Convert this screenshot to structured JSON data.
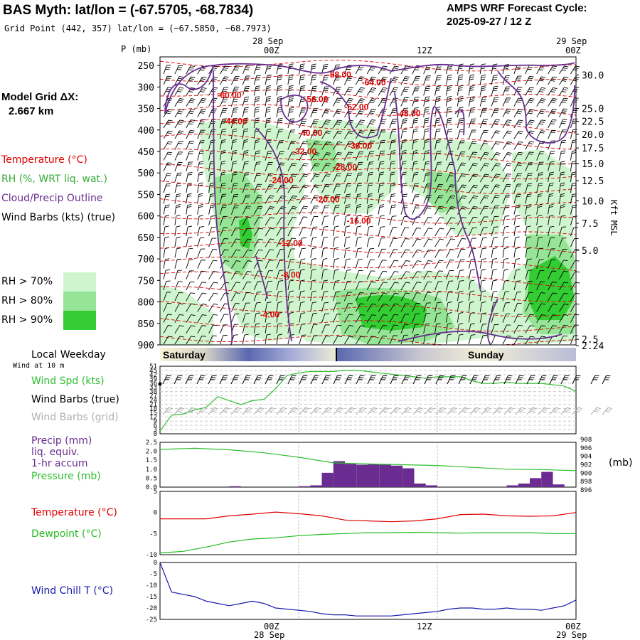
{
  "header": {
    "title": "BAS Myth:  lat/lon = (-67.5705, -68.7834)",
    "grid_point": "Grid Point (442, 357) lat/lon = (−67.5850, −68.7973)",
    "forecast_label": "AMPS WRF Forecast Cycle:",
    "forecast_cycle": "2025-09-27 / 12  Z"
  },
  "time_axis": {
    "top_dates": [
      "28 Sep",
      "29 Sep"
    ],
    "top_hours": [
      "00Z",
      "12Z",
      "00Z"
    ],
    "bottom_hours": [
      "00Z",
      "12Z",
      "00Z"
    ],
    "bottom_dates": [
      "28 Sep",
      "29 Sep"
    ]
  },
  "model_grid": {
    "label": "Model Grid ΔX:",
    "value": "2.667 km"
  },
  "legend": {
    "temperature": "Temperature (°C)",
    "rh": "RH (%, WRT liq. wat.)",
    "cloud": "Cloud/Precip Outline",
    "wind": "Wind Barbs (kts) (true)",
    "rh_levels": [
      {
        "label": "RH > 70%",
        "color": "#cff5cf"
      },
      {
        "label": "RH > 80%",
        "color": "#96e596"
      },
      {
        "label": "RH > 90%",
        "color": "#33cc33"
      }
    ]
  },
  "weekday": {
    "label": "Local Weekday",
    "wind_at": "Wind at 10 m",
    "days": [
      "Saturday",
      "Sunday"
    ]
  },
  "panel_labels": {
    "wind_spd": "Wind Spd (kts)",
    "wind_barbs_true": "Wind Barbs (true)",
    "wind_barbs_grid": "Wind Barbs (grid)",
    "precip": "Precip (mm)",
    "liq_equiv": "liq. equiv.",
    "accum": "1-hr accum",
    "pressure": "Pressure (mb)",
    "pressure_unit": "(mb)",
    "temperature": "Temperature (°C)",
    "dewpoint": "Dewpoint (°C)",
    "wind_chill": "Wind Chill T (°C)"
  },
  "colors": {
    "temperature": "#e00000",
    "rh": "#33cc33",
    "cloud": "#6a2c91",
    "wind_spd": "#2fbf2f",
    "pressure": "#2fbf2f",
    "precip": "#6a2c91",
    "dewpoint": "#22bb22",
    "wind_chill": "#1a1aa8",
    "grid_barbs": "#b0b0b0"
  },
  "chart_data": [
    {
      "type": "heatmap",
      "title": "Time-height cross section",
      "ylabel": "P (mb)",
      "y2label": "Kft MSL",
      "ylim": [
        900,
        230
      ],
      "pressure_ticks": [
        250,
        300,
        350,
        400,
        450,
        500,
        550,
        600,
        650,
        700,
        750,
        800,
        850,
        900
      ],
      "height_ticks": [
        "30.0",
        "25.0",
        "22.5",
        "20.0",
        "17.5",
        "15.0",
        "12.5",
        "10.0",
        "7.5",
        "5.0",
        "2.5",
        "2.24"
      ],
      "height_tick_pressures": [
        272,
        350,
        380,
        410,
        442,
        478,
        518,
        565,
        617,
        680,
        887,
        902
      ],
      "temperature_labels": [
        {
          "text": "-60.00",
          "hour": 6,
          "p": 318
        },
        {
          "text": "-58.00",
          "hour": 15.5,
          "p": 270
        },
        {
          "text": "-64.00",
          "hour": 18.5,
          "p": 288
        },
        {
          "text": "-56.00",
          "hour": 13.5,
          "p": 327
        },
        {
          "text": "-52.00",
          "hour": 17,
          "p": 345
        },
        {
          "text": "-48.00",
          "hour": 21.5,
          "p": 360
        },
        {
          "text": "-44.00",
          "hour": 6.5,
          "p": 378
        },
        {
          "text": "-40.00",
          "hour": 13,
          "p": 405
        },
        {
          "text": "-36.00",
          "hour": 17.3,
          "p": 435
        },
        {
          "text": "-32.00",
          "hour": 12.5,
          "p": 448
        },
        {
          "text": "-28.00",
          "hour": 16,
          "p": 485
        },
        {
          "text": "-24.00",
          "hour": 10.5,
          "p": 515
        },
        {
          "text": "-20.00",
          "hour": 14.5,
          "p": 560
        },
        {
          "text": "-16.00",
          "hour": 17.2,
          "p": 610
        },
        {
          "text": "-12.00",
          "hour": 11.3,
          "p": 662
        },
        {
          "text": "-8.00",
          "hour": 11.3,
          "p": 735
        },
        {
          "text": "-4.00",
          "hour": 9.5,
          "p": 828
        }
      ]
    },
    {
      "type": "line",
      "title": "Wind Spd (kts)",
      "ylim": [
        0,
        51
      ],
      "yticks": [
        "51",
        "45",
        "42",
        "39",
        "36",
        "33",
        "30",
        "27",
        "24",
        "21",
        "18",
        "15",
        "12",
        "9",
        "6",
        "3",
        "0"
      ],
      "x_hours": [
        0,
        1,
        2,
        3,
        4,
        5,
        6,
        7,
        8,
        9,
        10,
        11,
        12,
        13,
        14,
        15,
        16,
        17,
        18,
        19,
        20,
        21,
        22,
        23,
        24,
        25,
        26,
        27,
        28,
        29,
        30,
        31,
        32,
        33,
        34,
        35,
        36
      ],
      "values": [
        2,
        14,
        15,
        18,
        20,
        28,
        25,
        22,
        25,
        26,
        34,
        44,
        46,
        47,
        47,
        47,
        48,
        48,
        47,
        46,
        45,
        44,
        43,
        42,
        43,
        43,
        43,
        40,
        38,
        38,
        39,
        38,
        38,
        38,
        37,
        36,
        32
      ]
    },
    {
      "type": "bar",
      "title": "Precip (mm) / Pressure (mb)",
      "ylim": [
        0,
        2.5
      ],
      "yticks": [
        "2.5",
        "2.0",
        "1.5",
        "1.0",
        "0.5",
        "0.0"
      ],
      "y2lim": [
        896,
        908
      ],
      "y2ticks": [
        "908",
        "906",
        "904",
        "902",
        "900",
        "898",
        "896"
      ],
      "precip_hours": [
        6,
        12,
        13,
        14,
        15,
        16,
        17,
        18,
        19,
        20,
        21,
        22,
        23,
        30,
        31,
        32,
        33,
        34
      ],
      "precip_values": [
        0.05,
        0.05,
        0.1,
        0.8,
        1.45,
        1.3,
        1.25,
        1.3,
        1.25,
        1.2,
        1.05,
        0.2,
        0.1,
        0.1,
        0.2,
        0.5,
        0.85,
        0.15
      ],
      "pressure_hours": [
        0,
        3,
        6,
        9,
        12,
        15,
        18,
        21,
        24,
        27,
        30,
        33,
        36
      ],
      "pressure_values": [
        906.1,
        906.4,
        906.0,
        905.2,
        904.0,
        902.5,
        902.2,
        902.0,
        901.8,
        901.3,
        900.8,
        900.7,
        900.4
      ]
    },
    {
      "type": "line",
      "title": "Temperature / Dewpoint (°C)",
      "ylim": [
        -10,
        5
      ],
      "yticks": [
        "5",
        "0",
        "-5",
        "-10"
      ],
      "x_hours": [
        0,
        2,
        4,
        6,
        8,
        10,
        12,
        14,
        16,
        18,
        20,
        22,
        24,
        26,
        28,
        30,
        32,
        34,
        36
      ],
      "series": [
        {
          "name": "Temperature",
          "values": [
            -1.5,
            -1.5,
            -1.5,
            -0.8,
            -0.4,
            0.1,
            -0.3,
            -0.8,
            -1.8,
            -2.0,
            -2.2,
            -2.0,
            -1.5,
            -0.5,
            -0.4,
            -0.8,
            -0.9,
            -0.8,
            0.0
          ]
        },
        {
          "name": "Dewpoint",
          "values": [
            -9.6,
            -9.2,
            -8.2,
            -7.0,
            -6.3,
            -6.0,
            -5.5,
            -5.2,
            -5.0,
            -4.8,
            -4.8,
            -4.7,
            -4.8,
            -4.9,
            -4.8,
            -4.8,
            -4.8,
            -5.0,
            -5.0
          ]
        }
      ]
    },
    {
      "type": "line",
      "title": "Wind Chill T (°C)",
      "ylim": [
        -25,
        0
      ],
      "yticks": [
        "0",
        "-5",
        "-10",
        "-15",
        "-20",
        "-25"
      ],
      "x_hours": [
        0,
        1,
        2,
        3,
        4,
        5,
        6,
        7,
        8,
        9,
        10,
        11,
        12,
        13,
        14,
        15,
        16,
        17,
        18,
        19,
        20,
        21,
        22,
        23,
        24,
        25,
        26,
        27,
        28,
        29,
        30,
        31,
        32,
        33,
        34,
        35,
        36
      ],
      "values": [
        0,
        -13,
        -14,
        -15,
        -17,
        -18,
        -19,
        -18,
        -17,
        -18,
        -20,
        -20.5,
        -21,
        -21.5,
        -22.5,
        -23,
        -23,
        -23.5,
        -23.5,
        -23.5,
        -23.5,
        -23,
        -22.5,
        -22,
        -21.5,
        -20.5,
        -20,
        -20,
        -20.5,
        -20.5,
        -20,
        -20.5,
        -20.5,
        -21,
        -20,
        -19,
        -16.5
      ]
    }
  ]
}
